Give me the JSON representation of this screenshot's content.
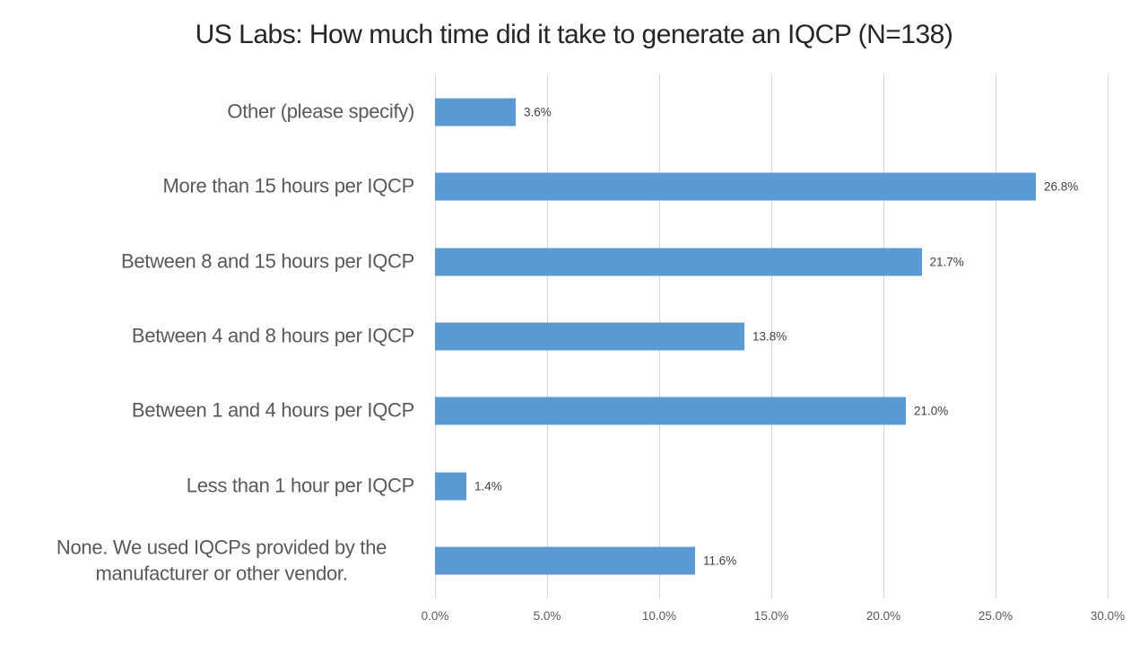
{
  "chart_data": {
    "type": "bar",
    "orientation": "horizontal",
    "title": "US Labs: How much time did it take to generate an IQCP (N=138)",
    "categories": [
      "Other (please specify)",
      "More than 15 hours per IQCP",
      "Between 8 and 15 hours per IQCP",
      "Between 4 and 8 hours per IQCP",
      "Between 1 and 4 hours per IQCP",
      "Less than 1 hour per IQCP",
      "None. We used IQCPs provided by the\nmanufacturer or other vendor."
    ],
    "values": [
      3.6,
      26.8,
      21.7,
      13.8,
      21.0,
      1.4,
      11.6
    ],
    "value_labels": [
      "3.6%",
      "26.8%",
      "21.7%",
      "13.8%",
      "21.0%",
      "1.4%",
      "11.6%"
    ],
    "x_ticks": [
      "0.0%",
      "5.0%",
      "10.0%",
      "15.0%",
      "20.0%",
      "25.0%",
      "30.0%"
    ],
    "x_tick_values": [
      0,
      5,
      10,
      15,
      20,
      25,
      30
    ],
    "xlim": [
      0,
      30
    ],
    "grid": "vertical",
    "legend": "none",
    "xlabel": "",
    "ylabel": "",
    "colors": {
      "bar": "#5b9bd5",
      "gridline": "#d6d6d6",
      "category_text": "#595959",
      "tick_text": "#595959",
      "value_text": "#404040",
      "title_text": "#262626",
      "background": "#ffffff"
    }
  }
}
